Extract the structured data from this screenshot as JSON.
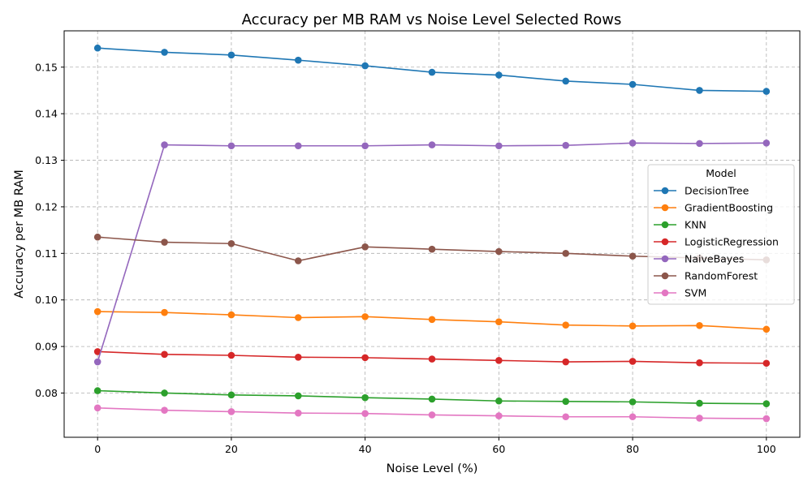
{
  "chart_data": {
    "type": "line",
    "title": "Accuracy per MB RAM vs Noise Level Selected Rows",
    "xlabel": "Noise Level (%)",
    "ylabel": "Accuracy per MB RAM",
    "x": [
      0,
      10,
      20,
      30,
      40,
      50,
      60,
      70,
      80,
      90,
      100
    ],
    "xlim": [
      -5,
      105
    ],
    "ylim": [
      0.0705,
      0.1578
    ],
    "xticks": [
      0,
      20,
      40,
      60,
      80,
      100
    ],
    "yticks": [
      0.08,
      0.09,
      0.1,
      0.11,
      0.12,
      0.13,
      0.14,
      0.15
    ],
    "ytick_labels": [
      "0.08",
      "0.09",
      "0.10",
      "0.11",
      "0.12",
      "0.13",
      "0.14",
      "0.15"
    ],
    "grid": true,
    "legend": {
      "title": "Model",
      "placement": "right"
    },
    "series": [
      {
        "name": "DecisionTree",
        "color": "#1f77b4",
        "values": [
          0.1541,
          0.1532,
          0.1526,
          0.1515,
          0.1503,
          0.1489,
          0.1483,
          0.147,
          0.1463,
          0.145,
          0.1448
        ]
      },
      {
        "name": "GradientBoosting",
        "color": "#ff7f0e",
        "values": [
          0.0975,
          0.0973,
          0.0968,
          0.0962,
          0.0964,
          0.0958,
          0.0953,
          0.0946,
          0.0944,
          0.0945,
          0.0937
        ]
      },
      {
        "name": "KNN",
        "color": "#2ca02c",
        "values": [
          0.0805,
          0.08,
          0.0796,
          0.0794,
          0.079,
          0.0787,
          0.0783,
          0.0782,
          0.0781,
          0.0778,
          0.0777
        ]
      },
      {
        "name": "LogisticRegression",
        "color": "#d62728",
        "values": [
          0.0889,
          0.0883,
          0.0881,
          0.0877,
          0.0876,
          0.0873,
          0.087,
          0.0867,
          0.0868,
          0.0865,
          0.0864
        ]
      },
      {
        "name": "NaiveBayes",
        "color": "#9467bd",
        "values": [
          0.0867,
          0.1333,
          0.1331,
          0.1331,
          0.1331,
          0.1333,
          0.1331,
          0.1332,
          0.1337,
          0.1336,
          0.1337
        ]
      },
      {
        "name": "RandomForest",
        "color": "#8c564b",
        "values": [
          0.1135,
          0.1124,
          0.1121,
          0.1084,
          0.1114,
          0.1109,
          0.1104,
          0.11,
          0.1094,
          0.109,
          0.1086
        ]
      },
      {
        "name": "SVM",
        "color": "#e377c2",
        "values": [
          0.0768,
          0.0763,
          0.076,
          0.0757,
          0.0756,
          0.0753,
          0.0751,
          0.0749,
          0.0749,
          0.0746,
          0.0745
        ]
      }
    ]
  }
}
